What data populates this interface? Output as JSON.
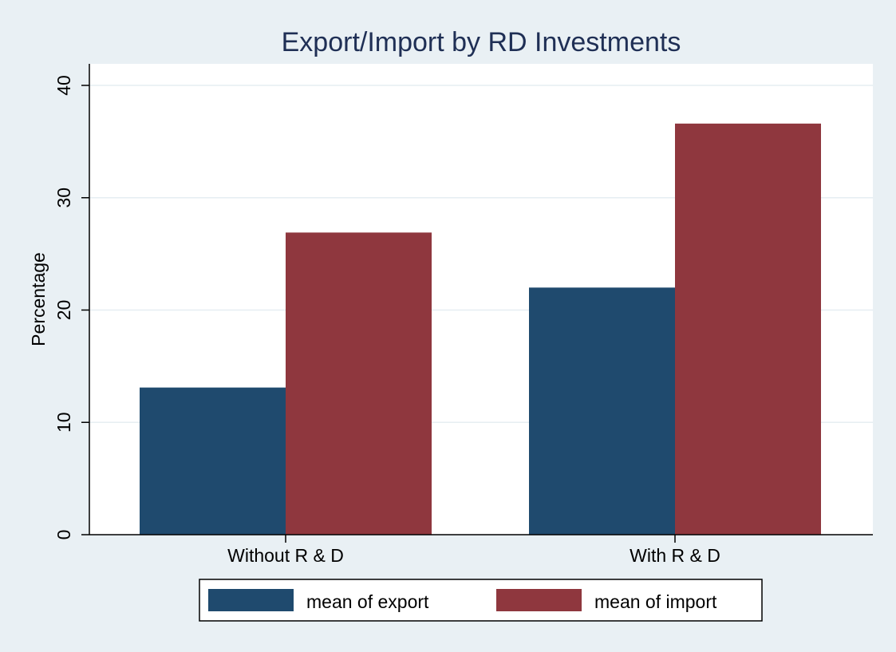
{
  "chart_data": {
    "type": "bar",
    "title": "Export/Import by RD Investments",
    "xlabel": "",
    "ylabel": "Percentage",
    "ylim": [
      0,
      40
    ],
    "yticks": [
      0,
      10,
      20,
      30,
      40
    ],
    "categories": [
      "Without R & D",
      "With R & D"
    ],
    "series": [
      {
        "name": "mean of export",
        "values": [
          13.1,
          22.0
        ],
        "color": "#1f4a6e"
      },
      {
        "name": "mean of import",
        "values": [
          26.9,
          36.6
        ],
        "color": "#8f373e"
      }
    ],
    "grid": true,
    "legend_position": "bottom"
  }
}
